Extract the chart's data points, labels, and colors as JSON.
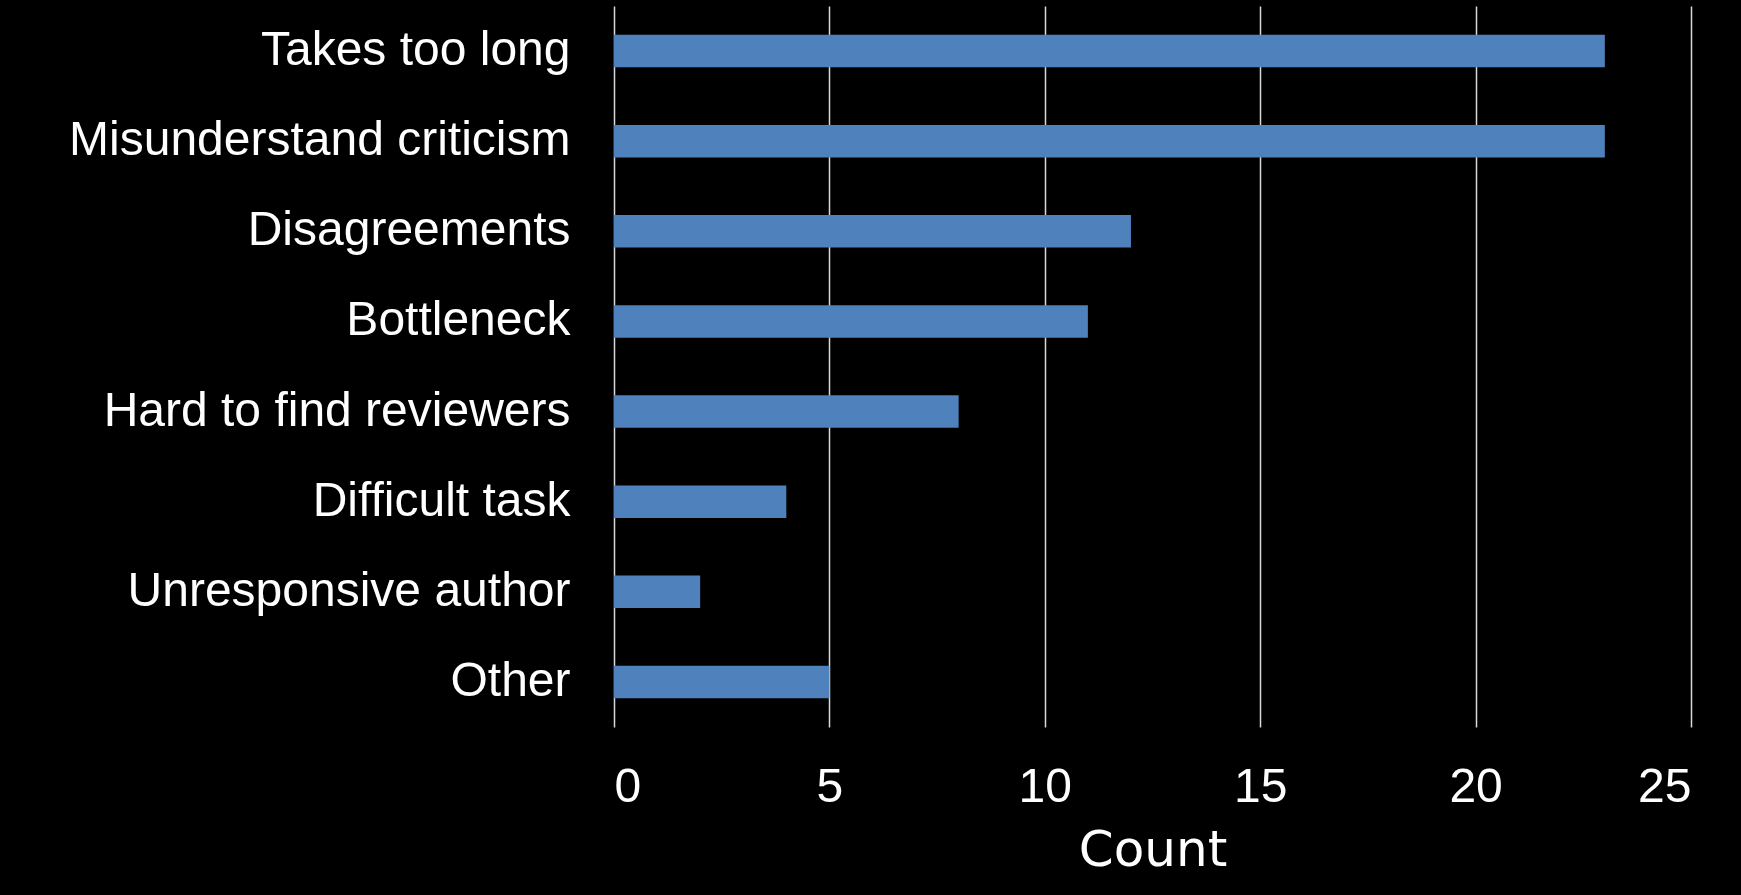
{
  "chart_data": {
    "type": "bar",
    "orientation": "horizontal",
    "categories": [
      "Takes too long",
      "Misunderstand criticism",
      "Disagreements",
      "Bottleneck",
      "Hard to find reviewers",
      "Difficult task",
      "Unresponsive author",
      "Other"
    ],
    "values": [
      23,
      23,
      12,
      11,
      8,
      4,
      2,
      5
    ],
    "color": "#4f81bd",
    "xlim": [
      0,
      25
    ],
    "xticks": [
      0,
      5,
      10,
      15,
      20,
      25
    ],
    "xlabel": "Count",
    "grid": "x",
    "legend": false
  }
}
